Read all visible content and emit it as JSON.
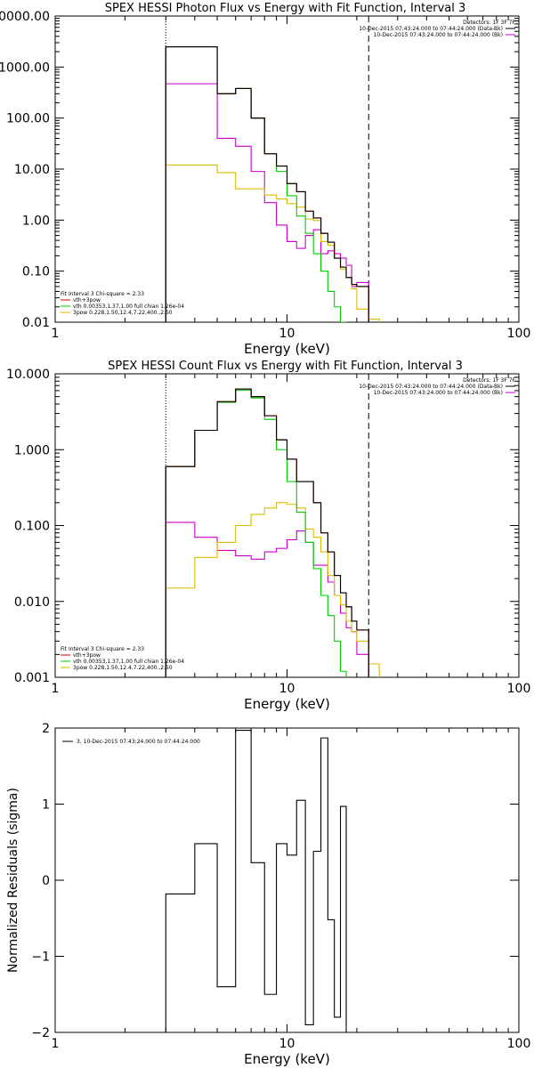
{
  "colors": {
    "total": "#000000",
    "vth_3pow": "#cc0000",
    "vth": "#00cc00",
    "pow": "#cc00cc",
    "3pow": "#ddbb00",
    "axis": "#000000"
  },
  "chart_data": [
    {
      "type": "line",
      "step": true,
      "title": "SPEX HESSI Photon Flux vs Energy with Fit Function, Interval 3",
      "xlabel": "Energy (keV)",
      "ylabel": "",
      "xscale": "log",
      "yscale": "log",
      "xlim": [
        1,
        100
      ],
      "ylim": [
        0.01,
        10000
      ],
      "x_ticks": [
        "1",
        "10",
        "100"
      ],
      "y_ticks": [
        "0000.00",
        "1000.00",
        "100.00",
        "10.00",
        "1.00",
        "0.10",
        "0.01"
      ],
      "y_tick_values": [
        10000,
        1000,
        100,
        10,
        1,
        0.1,
        0.01
      ],
      "vlines": [
        {
          "x": 3.0,
          "style": "dotted"
        },
        {
          "x": 22.5,
          "style": "dashed"
        }
      ],
      "legend_tr": [
        "Detectors: 1F 3F 7F",
        "10-Dec-2015 07:43:24.000 to 07:44:24.000 (Data-Bk)",
        "10-Dec-2015 07:43:24.000 to 07:44:24.000 (Bk)"
      ],
      "legend_bl": [
        "Fit Interval 3   Chi-square = 2.33",
        "vth+3pow",
        "vth 0.00353,1.37,1.00  full chian 1.26e-04",
        "3pow 0.228,1.50,12.4,7.22,400.,2.50"
      ],
      "x_edges": [
        3.0,
        4.0,
        5.0,
        6.0,
        7.0,
        8.0,
        9.0,
        10.0,
        11.0,
        12.0,
        13.0,
        14.0,
        15.0,
        16.0,
        17.0,
        18.0,
        19.0,
        20.0,
        22.5,
        25.0,
        28.0
      ],
      "series": [
        {
          "key": "total",
          "values": [
            2500,
            2500,
            300,
            380,
            100,
            20,
            11.5,
            5.2,
            3.6,
            1.5,
            1.1,
            0.55,
            0.37,
            0.18,
            0.12,
            0.075,
            0.055,
            0.05,
            null,
            null
          ]
        },
        {
          "key": "vth_3pow",
          "values": [
            2500,
            2500,
            300,
            380,
            100,
            20,
            11.5,
            5.2,
            3.6,
            1.5,
            1.1,
            0.55,
            0.37,
            0.18,
            0.12,
            0.075,
            0.055,
            0.05,
            null,
            null
          ]
        },
        {
          "key": "vth",
          "values": [
            2500,
            2500,
            300,
            380,
            100,
            20,
            9,
            3.0,
            1.2,
            0.55,
            0.22,
            0.1,
            0.04,
            0.02,
            0.01,
            null,
            null,
            null,
            null,
            null
          ]
        },
        {
          "key": "pow",
          "values": [
            470,
            470,
            40,
            28,
            9,
            2.2,
            0.8,
            0.38,
            0.28,
            0.5,
            0.65,
            0.22,
            0.25,
            0.22,
            0.18,
            0.13,
            0.05,
            0.06,
            null,
            null
          ]
        },
        {
          "key": "3pow",
          "values": [
            12,
            12,
            8.5,
            4.1,
            4.1,
            3.1,
            2.6,
            2.1,
            1.8,
            1.05,
            0.98,
            0.38,
            0.32,
            0.18,
            0.11,
            0.075,
            0.045,
            0.018,
            0.0115,
            null
          ]
        }
      ]
    },
    {
      "type": "line",
      "step": true,
      "title": "SPEX HESSI Count Flux vs Energy with Fit Function, Interval 3",
      "xlabel": "Energy (keV)",
      "ylabel": "",
      "xscale": "log",
      "yscale": "log",
      "xlim": [
        1,
        100
      ],
      "ylim": [
        0.001,
        10
      ],
      "x_ticks": [
        "1",
        "10",
        "100"
      ],
      "y_ticks": [
        "10.000",
        "1.000",
        "0.100",
        "0.010",
        "0.001"
      ],
      "y_tick_values": [
        10,
        1,
        0.1,
        0.01,
        0.001
      ],
      "vlines": [
        {
          "x": 3.0,
          "style": "dotted"
        },
        {
          "x": 22.5,
          "style": "dashed"
        }
      ],
      "legend_tr": [
        "Detectors: 1F 3F 7F",
        "10-Dec-2015 07:43:24.000 to 07:44:24.000 (Data-Bk)",
        "10-Dec-2015 07:43:24.000 to 07:44:24.000 (Bk)"
      ],
      "legend_bl": [
        "Fit Interval 3   Chi-square = 2.33",
        "vth+3pow",
        "vth 0.00353,1.37,1.00  full chian 1.26e-04",
        "3pow 0.228,1.50,12.4,7.22,400.,2.50"
      ],
      "x_edges": [
        3.0,
        4.0,
        5.0,
        6.0,
        7.0,
        8.0,
        9.0,
        10.0,
        11.0,
        12.0,
        13.0,
        14.0,
        15.0,
        16.0,
        17.0,
        18.0,
        19.0,
        20.0,
        22.5,
        25.0,
        28.0
      ],
      "series": [
        {
          "key": "total",
          "values": [
            0.6,
            1.8,
            4.3,
            6.3,
            5.0,
            2.8,
            1.35,
            0.75,
            0.38,
            0.38,
            0.2,
            0.08,
            0.045,
            0.022,
            0.013,
            0.0085,
            0.0055,
            0.0042,
            null,
            null
          ]
        },
        {
          "key": "vth_3pow",
          "values": [
            0.6,
            1.8,
            4.3,
            6.3,
            5.0,
            2.8,
            1.35,
            0.75,
            0.38,
            0.38,
            0.2,
            0.08,
            0.045,
            0.022,
            0.013,
            0.0085,
            0.0055,
            0.0042,
            null,
            null
          ]
        },
        {
          "key": "vth",
          "values": [
            0.6,
            1.8,
            4.2,
            6.1,
            4.8,
            2.5,
            1.0,
            0.38,
            0.15,
            0.06,
            0.027,
            0.012,
            0.0065,
            0.003,
            0.0012,
            0.0008,
            null,
            null,
            null,
            null
          ]
        },
        {
          "key": "pow",
          "values": [
            0.11,
            0.07,
            0.047,
            0.04,
            0.036,
            0.045,
            0.05,
            0.065,
            0.085,
            0.06,
            0.03,
            0.03,
            0.018,
            0.012,
            0.007,
            0.0045,
            0.004,
            0.002,
            null,
            null
          ]
        },
        {
          "key": "3pow",
          "values": [
            0.015,
            0.038,
            0.06,
            0.1,
            0.14,
            0.17,
            0.2,
            0.19,
            0.17,
            0.09,
            0.07,
            0.045,
            0.022,
            0.012,
            0.009,
            0.0055,
            0.004,
            0.003,
            0.0015,
            0.0009
          ]
        }
      ]
    },
    {
      "type": "line",
      "step": true,
      "title": "",
      "xlabel": "Energy (keV)",
      "ylabel": "Normalized Residuals (sigma)",
      "xscale": "log",
      "yscale": "linear",
      "xlim": [
        1,
        100
      ],
      "ylim": [
        -2,
        2
      ],
      "x_ticks": [
        "1",
        "10",
        "100"
      ],
      "y_ticks": [
        "2",
        "1",
        "0",
        "−1",
        "−2"
      ],
      "y_tick_values": [
        2,
        1,
        0,
        -1,
        -2
      ],
      "legend_tl": [
        "3, 10-Dec-2015 07:43:24.000 to 07:44:24.000"
      ],
      "x_edges": [
        3.0,
        4.0,
        5.0,
        6.0,
        7.0,
        8.0,
        9.0,
        10.0,
        11.0,
        12.0,
        13.0,
        14.0,
        15.0,
        16.0,
        17.0,
        18.0,
        19.0,
        20.0,
        22.5
      ],
      "series": [
        {
          "key": "total",
          "values": [
            -0.18,
            0.48,
            -1.4,
            1.97,
            0.23,
            -1.5,
            0.48,
            0.33,
            1.05,
            -1.9,
            0.38,
            1.87,
            -0.52,
            -1.8,
            0.97
          ]
        }
      ]
    }
  ]
}
